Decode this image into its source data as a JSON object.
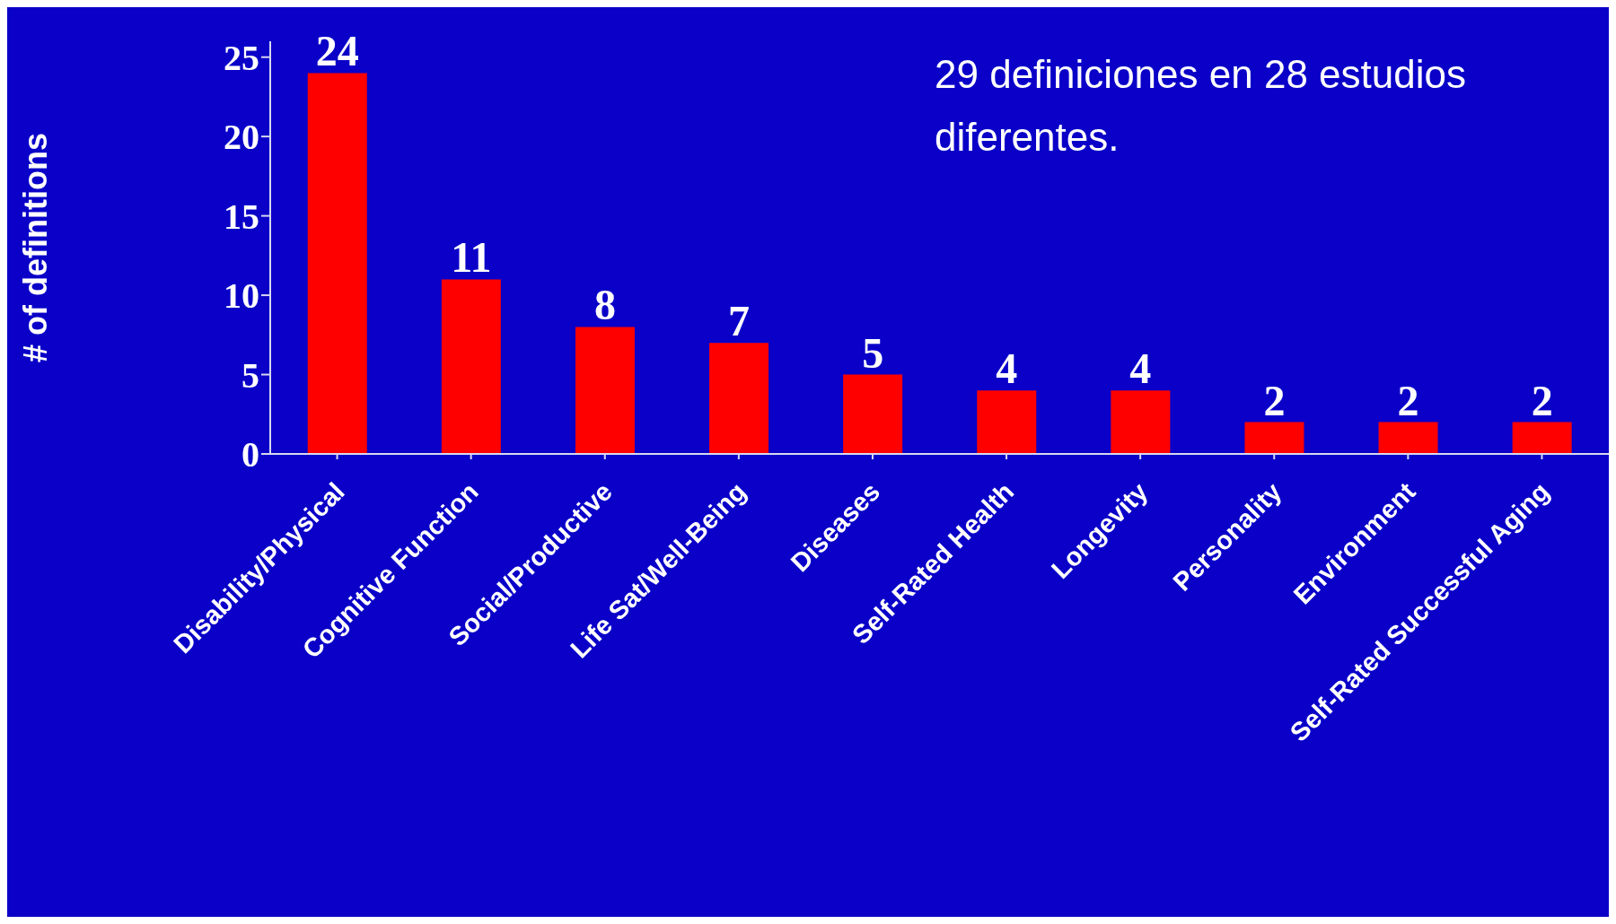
{
  "chart_data": {
    "type": "bar",
    "ylabel": "# of definitions",
    "categories": [
      "Disability/Physical",
      "Cognitive Function",
      "Social/Productive",
      "Life Sat/Well-Being",
      "Diseases",
      "Self-Rated Health",
      "Longevity",
      "Personality",
      "Environment",
      "Self-Rated Successful Aging"
    ],
    "values": [
      24,
      11,
      8,
      7,
      5,
      4,
      4,
      2,
      2,
      2
    ],
    "color": "#ff0000",
    "ylim": [
      0,
      26
    ],
    "yticks": [
      0,
      5,
      10,
      15,
      20,
      25
    ],
    "grid": false,
    "data_labels": true,
    "legend": false,
    "annotations": [
      "29 definiciones en 28 estudios diferentes."
    ]
  }
}
